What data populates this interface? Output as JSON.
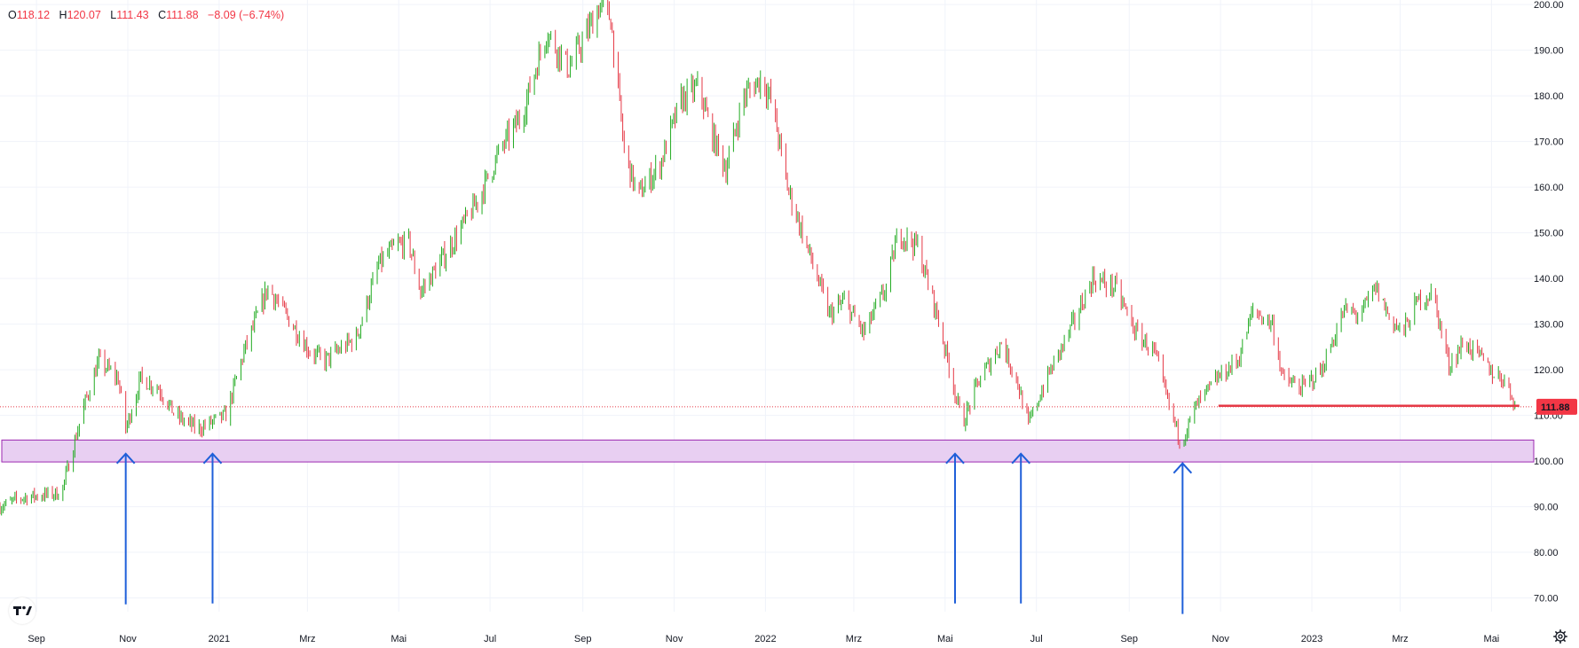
{
  "header": {
    "open_label": "O",
    "open": "118.12",
    "high_label": "H",
    "high": "120.07",
    "low_label": "L",
    "low": "111.43",
    "close_label": "C",
    "close": "111.88",
    "change": "−8.09 (−6.74%)"
  },
  "price_badge": "111.88",
  "colors": {
    "up": "#22ab22",
    "down": "#e53946",
    "zone_fill": "#e8cff2",
    "zone_stroke": "#9c27b0",
    "arrow": "#1f5fd9",
    "support_line": "#e53946",
    "grid": "#f0f3fa"
  },
  "chart_data": {
    "type": "ohlc-bar",
    "ylim": [
      67,
      201
    ],
    "y_ticks": [
      "70.00",
      "80.00",
      "90.00",
      "100.00",
      "110.00",
      "120.00",
      "130.00",
      "140.00",
      "150.00",
      "160.00",
      "170.00",
      "180.00",
      "190.00",
      "200.00"
    ],
    "x_ticks": [
      "Sep",
      "Nov",
      "2021",
      "Mrz",
      "Mai",
      "Jul",
      "Sep",
      "Nov",
      "2022",
      "Mrz",
      "Mai",
      "Jul",
      "Sep",
      "Nov",
      "2023",
      "Mrz",
      "Mai"
    ],
    "x_range": [
      "2020-08-10",
      "2023-05-31"
    ],
    "last_close": 111.88,
    "price_path": [
      [
        "2020-08-10",
        90
      ],
      [
        "2020-08-25",
        92
      ],
      [
        "2020-09-20",
        93
      ],
      [
        "2020-10-05",
        112
      ],
      [
        "2020-10-15",
        122
      ],
      [
        "2020-10-28",
        118
      ],
      [
        "2020-11-02",
        107
      ],
      [
        "2020-11-12",
        118
      ],
      [
        "2020-11-24",
        116
      ],
      [
        "2020-12-05",
        110
      ],
      [
        "2020-12-20",
        107
      ],
      [
        "2021-01-08",
        110
      ],
      [
        "2021-01-20",
        124
      ],
      [
        "2021-02-05",
        138
      ],
      [
        "2021-02-15",
        133
      ],
      [
        "2021-02-25",
        128
      ],
      [
        "2021-03-05",
        124
      ],
      [
        "2021-03-15",
        122
      ],
      [
        "2021-04-05",
        127
      ],
      [
        "2021-04-20",
        143
      ],
      [
        "2021-05-01",
        147
      ],
      [
        "2021-05-10",
        148
      ],
      [
        "2021-05-18",
        137
      ],
      [
        "2021-06-05",
        146
      ],
      [
        "2021-06-25",
        157
      ],
      [
        "2021-07-10",
        168
      ],
      [
        "2021-07-25",
        176
      ],
      [
        "2021-08-10",
        194
      ],
      [
        "2021-08-25",
        186
      ],
      [
        "2021-09-05",
        193
      ],
      [
        "2021-09-15",
        200
      ],
      [
        "2021-09-22",
        197
      ],
      [
        "2021-10-01",
        168
      ],
      [
        "2021-10-10",
        158
      ],
      [
        "2021-10-25",
        165
      ],
      [
        "2021-11-08",
        179
      ],
      [
        "2021-11-20",
        182
      ],
      [
        "2021-11-28",
        172
      ],
      [
        "2021-12-08",
        164
      ],
      [
        "2021-12-20",
        180
      ],
      [
        "2022-01-01",
        184
      ],
      [
        "2022-01-08",
        178
      ],
      [
        "2022-01-18",
        160
      ],
      [
        "2022-02-05",
        142
      ],
      [
        "2022-02-15",
        132
      ],
      [
        "2022-02-25",
        135
      ],
      [
        "2022-03-10",
        128
      ],
      [
        "2022-03-25",
        138
      ],
      [
        "2022-04-02",
        150
      ],
      [
        "2022-04-15",
        147
      ],
      [
        "2022-04-28",
        132
      ],
      [
        "2022-05-08",
        118
      ],
      [
        "2022-05-15",
        108
      ],
      [
        "2022-05-25",
        117
      ],
      [
        "2022-06-10",
        126
      ],
      [
        "2022-06-20",
        118
      ],
      [
        "2022-06-28",
        108
      ],
      [
        "2022-07-10",
        118
      ],
      [
        "2022-07-25",
        128
      ],
      [
        "2022-08-10",
        140
      ],
      [
        "2022-08-25",
        138
      ],
      [
        "2022-09-08",
        128
      ],
      [
        "2022-09-20",
        124
      ],
      [
        "2022-09-30",
        112
      ],
      [
        "2022-10-08",
        104
      ],
      [
        "2022-10-18",
        112
      ],
      [
        "2022-11-01",
        118
      ],
      [
        "2022-11-15",
        122
      ],
      [
        "2022-11-25",
        133
      ],
      [
        "2022-12-08",
        130
      ],
      [
        "2022-12-15",
        118
      ],
      [
        "2022-12-28",
        116
      ],
      [
        "2023-01-10",
        120
      ],
      [
        "2023-01-25",
        133
      ],
      [
        "2023-02-05",
        132
      ],
      [
        "2023-02-15",
        138
      ],
      [
        "2023-02-25",
        131
      ],
      [
        "2023-03-05",
        128
      ],
      [
        "2023-03-15",
        135
      ],
      [
        "2023-03-25",
        137
      ],
      [
        "2023-04-05",
        121
      ],
      [
        "2023-04-15",
        126
      ],
      [
        "2023-04-25",
        123
      ],
      [
        "2023-05-05",
        119
      ],
      [
        "2023-05-12",
        118
      ],
      [
        "2023-05-20",
        111.88
      ]
    ],
    "support_zone": {
      "y0": 99.8,
      "y1": 104.6
    },
    "support_line": {
      "y": 112.1,
      "from": "2022-11-02",
      "to": "2023-05-22"
    },
    "arrows": [
      {
        "date": "2020-11-02",
        "tip": 101.6,
        "base": 68.6
      },
      {
        "date": "2020-12-30",
        "tip": 101.6,
        "base": 68.8
      },
      {
        "date": "2022-05-10",
        "tip": 101.6,
        "base": 68.8
      },
      {
        "date": "2022-06-23",
        "tip": 101.6,
        "base": 68.8
      },
      {
        "date": "2022-10-09",
        "tip": 99.5,
        "base": 66.5
      }
    ]
  }
}
